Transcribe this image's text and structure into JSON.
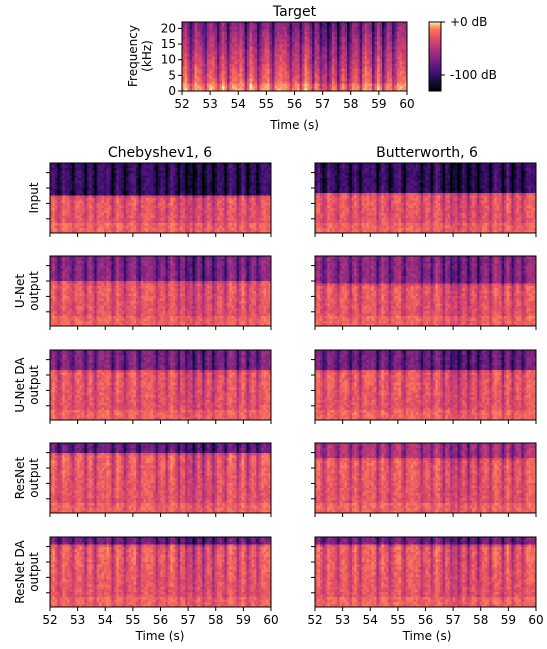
{
  "chart_data": [
    {
      "type": "heatmap",
      "id": "target",
      "title": "Target",
      "xlabel": "Time (s)",
      "ylabel_lines": [
        "Frequency",
        "(kHz)"
      ],
      "x_ticks": [
        "52",
        "53",
        "54",
        "55",
        "56",
        "57",
        "58",
        "59",
        "60"
      ],
      "y_ticks": [
        "0",
        "5",
        "10",
        "15",
        "20"
      ],
      "xlim": [
        52,
        60
      ],
      "ylim": [
        0,
        22.05
      ],
      "cutoff_khz": 0,
      "colorbar": {
        "labels": [
          "+0 dB",
          "-100 dB"
        ],
        "range_db": [
          -110,
          0
        ],
        "colormap": "magma"
      }
    },
    {
      "type": "grid",
      "id": "comparison",
      "column_titles": [
        "Chebyshev1, 6",
        "Butterworth, 6"
      ],
      "row_labels": [
        [
          "Input"
        ],
        [
          "U-Net",
          "output"
        ],
        [
          "U-Net DA",
          "output"
        ],
        [
          "ResNet",
          "output"
        ],
        [
          "ResNet DA",
          "output"
        ]
      ],
      "xlabel": "Time (s)",
      "x_ticks": [
        "52",
        "53",
        "54",
        "55",
        "56",
        "57",
        "58",
        "59",
        "60"
      ],
      "xlim": [
        52,
        60
      ],
      "panels": [
        {
          "row": 0,
          "col": 0,
          "cutoff_frac": 0.55,
          "top_level": 0.14,
          "seed": 11
        },
        {
          "row": 0,
          "col": 1,
          "cutoff_frac": 0.56,
          "top_level": 0.14,
          "seed": 12
        },
        {
          "row": 1,
          "col": 0,
          "cutoff_frac": 0.64,
          "top_level": 0.36,
          "seed": 21
        },
        {
          "row": 1,
          "col": 1,
          "cutoff_frac": 0.62,
          "top_level": 0.38,
          "seed": 22
        },
        {
          "row": 2,
          "col": 0,
          "cutoff_frac": 0.72,
          "top_level": 0.34,
          "seed": 31
        },
        {
          "row": 2,
          "col": 1,
          "cutoff_frac": 0.7,
          "top_level": 0.3,
          "seed": 32
        },
        {
          "row": 3,
          "col": 0,
          "cutoff_frac": 0.86,
          "top_level": 0.28,
          "seed": 41
        },
        {
          "row": 3,
          "col": 1,
          "cutoff_frac": 0.8,
          "top_level": 0.46,
          "seed": 42
        },
        {
          "row": 4,
          "col": 0,
          "cutoff_frac": 0.9,
          "top_level": 0.3,
          "seed": 51
        },
        {
          "row": 4,
          "col": 1,
          "cutoff_frac": 0.88,
          "top_level": 0.32,
          "seed": 52
        }
      ]
    }
  ]
}
